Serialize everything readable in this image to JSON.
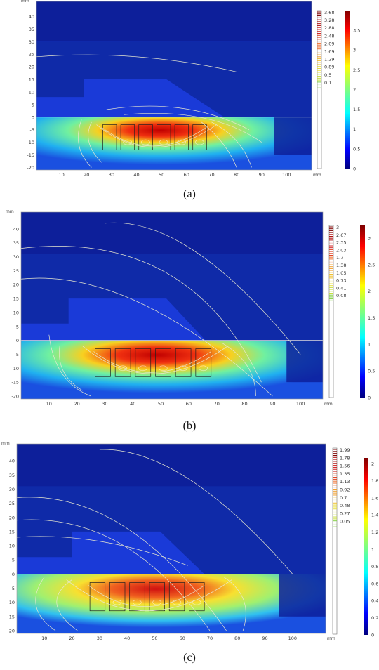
{
  "unit": "mm",
  "x_ticks": [
    "10",
    "20",
    "30",
    "40",
    "50",
    "60",
    "70",
    "80",
    "90",
    "100"
  ],
  "y_ticks": [
    "40",
    "35",
    "30",
    "25",
    "20",
    "15",
    "10",
    "5",
    "0",
    "-5",
    "-10",
    "-15",
    "-20"
  ],
  "panels": [
    {
      "caption": "(a)",
      "contour_labels": [
        "3.68",
        "3.28",
        "2.88",
        "2.48",
        "2.09",
        "1.69",
        "1.29",
        "0.89",
        "0.5",
        "0.1"
      ],
      "colorbar_labels": [
        "3.5",
        "3",
        "2.5",
        "2",
        "1.5",
        "1",
        "0.5",
        "0"
      ]
    },
    {
      "caption": "(b)",
      "contour_labels": [
        "3",
        "2.67",
        "2.35",
        "2.03",
        "1.7",
        "1.38",
        "1.05",
        "0.73",
        "0.41",
        "0.08"
      ],
      "colorbar_labels": [
        "3",
        "2.5",
        "2",
        "1.5",
        "1",
        "0.5",
        "0"
      ]
    },
    {
      "caption": "(c)",
      "contour_labels": [
        "1.99",
        "1.78",
        "1.56",
        "1.35",
        "1.13",
        "0.92",
        "0.7",
        "0.48",
        "0.27",
        "0.05"
      ],
      "colorbar_labels": [
        "2",
        "1.8",
        "1.6",
        "1.4",
        "1.2",
        "1",
        "0.8",
        "0.6",
        "0.4",
        "0.2",
        "0"
      ]
    }
  ],
  "colors": {
    "background_field": "#1a3ad8",
    "dark_field": "#0d1f9a",
    "hot": "#d01010",
    "contour": "#e8e8d0"
  }
}
